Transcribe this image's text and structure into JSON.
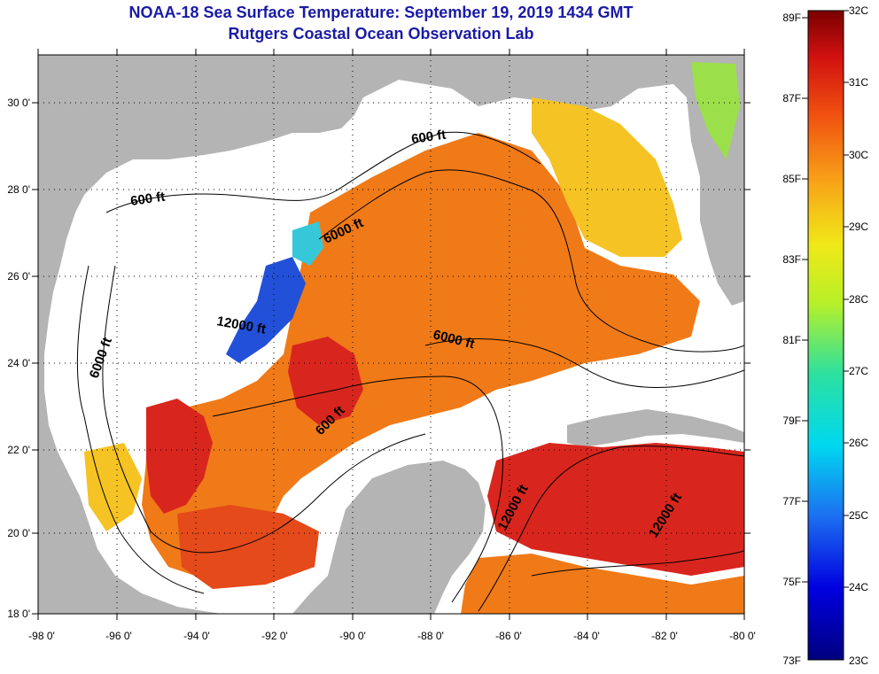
{
  "header": {
    "title": "NOAA-18 Sea Surface Temperature:  September 19, 2019 1434 GMT",
    "subtitle": "Rutgers Coastal Ocean Observation Lab"
  },
  "axes": {
    "y_labels": [
      "30 0'",
      "28 0'",
      "26 0'",
      "24 0'",
      "22 0'",
      "20 0'",
      "18 0'"
    ],
    "x_labels": [
      "-98 0'",
      "-96 0'",
      "-94 0'",
      "-92 0'",
      "-90 0'",
      "-88 0'",
      "-86 0'",
      "-84 0'",
      "-82 0'",
      "-80 0'"
    ]
  },
  "contours": {
    "labels": [
      "600 ft",
      "600 ft",
      "600 ft",
      "6000 ft",
      "6000 ft",
      "6000 ft",
      "12000 ft",
      "12000 ft",
      "12000 ft"
    ]
  },
  "colorbar": {
    "fahrenheit_labels": [
      "89F",
      "87F",
      "85F",
      "83F",
      "81F",
      "79F",
      "77F",
      "75F",
      "73F"
    ],
    "celsius_labels": [
      "32C",
      "31C",
      "30C",
      "29C",
      "28C",
      "27C",
      "26C",
      "25C",
      "24C",
      "23C"
    ]
  },
  "colors": {
    "land": "#b4b4b4",
    "cloud": "#ffffff",
    "title": "#1a1aa6",
    "sst_hot": "#d8261e",
    "sst_warm": "#f07a18",
    "sst_mid": "#f5c323",
    "sst_cool": "#2250d8"
  }
}
